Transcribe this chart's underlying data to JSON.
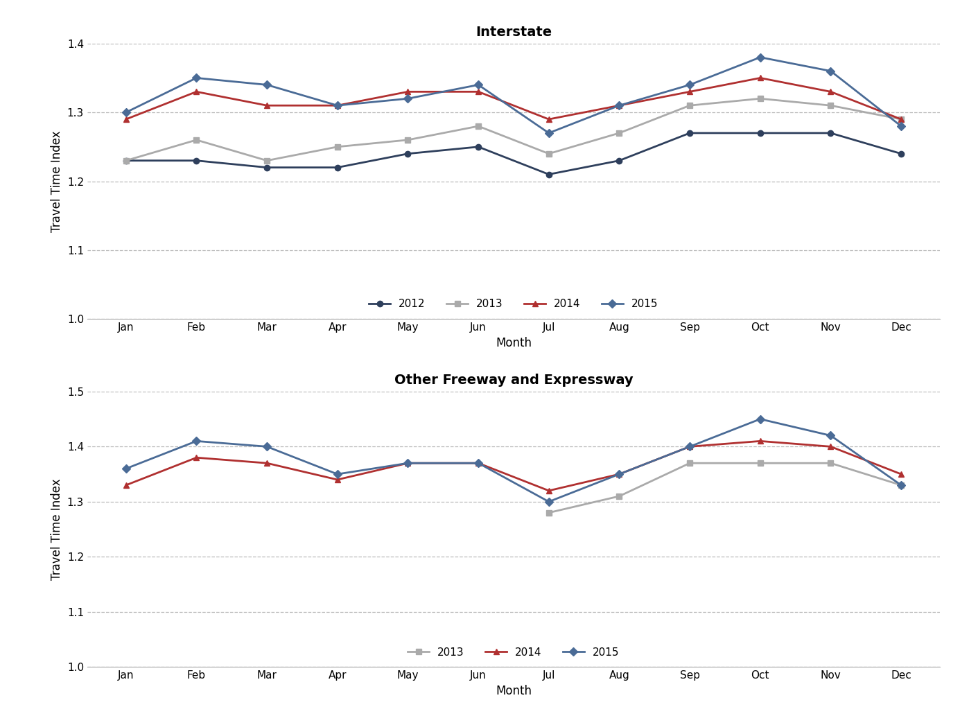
{
  "months": [
    "Jan",
    "Feb",
    "Mar",
    "Apr",
    "May",
    "Jun",
    "Jul",
    "Aug",
    "Sep",
    "Oct",
    "Nov",
    "Dec"
  ],
  "interstate": {
    "2012": [
      1.23,
      1.23,
      1.22,
      1.22,
      1.24,
      1.25,
      1.21,
      1.23,
      1.27,
      1.27,
      1.27,
      1.24
    ],
    "2013": [
      1.23,
      1.26,
      1.23,
      1.25,
      1.26,
      1.28,
      1.24,
      1.27,
      1.31,
      1.32,
      1.31,
      1.29
    ],
    "2014": [
      1.29,
      1.33,
      1.31,
      1.31,
      1.33,
      1.33,
      1.29,
      1.31,
      1.33,
      1.35,
      1.33,
      1.29
    ],
    "2015": [
      1.3,
      1.35,
      1.34,
      1.31,
      1.32,
      1.34,
      1.27,
      1.31,
      1.34,
      1.38,
      1.36,
      1.28
    ]
  },
  "freeway": {
    "2013": [
      null,
      null,
      null,
      null,
      null,
      null,
      1.28,
      1.31,
      1.37,
      1.37,
      1.37,
      1.33
    ],
    "2014": [
      1.33,
      1.38,
      1.37,
      1.34,
      1.37,
      1.37,
      1.32,
      1.35,
      1.4,
      1.41,
      1.4,
      1.35
    ],
    "2015": [
      1.36,
      1.41,
      1.4,
      1.35,
      1.37,
      1.37,
      1.3,
      1.35,
      1.4,
      1.45,
      1.42,
      1.33
    ]
  },
  "colors": {
    "2012": "#2e3f5c",
    "2013": "#aaaaaa",
    "2014": "#b03030",
    "2015": "#4a6b96"
  },
  "markers": {
    "2012": "o",
    "2013": "s",
    "2014": "^",
    "2015": "D"
  },
  "title_interstate": "Interstate",
  "title_freeway": "Other Freeway and Expressway",
  "ylabel": "Travel Time Index",
  "xlabel": "Month",
  "ylim_interstate": [
    1.0,
    1.4
  ],
  "ylim_freeway": [
    1.0,
    1.5
  ],
  "yticks_interstate": [
    1.0,
    1.1,
    1.2,
    1.3,
    1.4
  ],
  "yticks_freeway": [
    1.0,
    1.1,
    1.2,
    1.3,
    1.4,
    1.5
  ],
  "background_color": "#ffffff",
  "grid_color": "#bbbbbb",
  "title_fontsize": 14,
  "label_fontsize": 12,
  "tick_fontsize": 11,
  "legend_fontsize": 11,
  "line_width": 2.0,
  "marker_size": 6
}
